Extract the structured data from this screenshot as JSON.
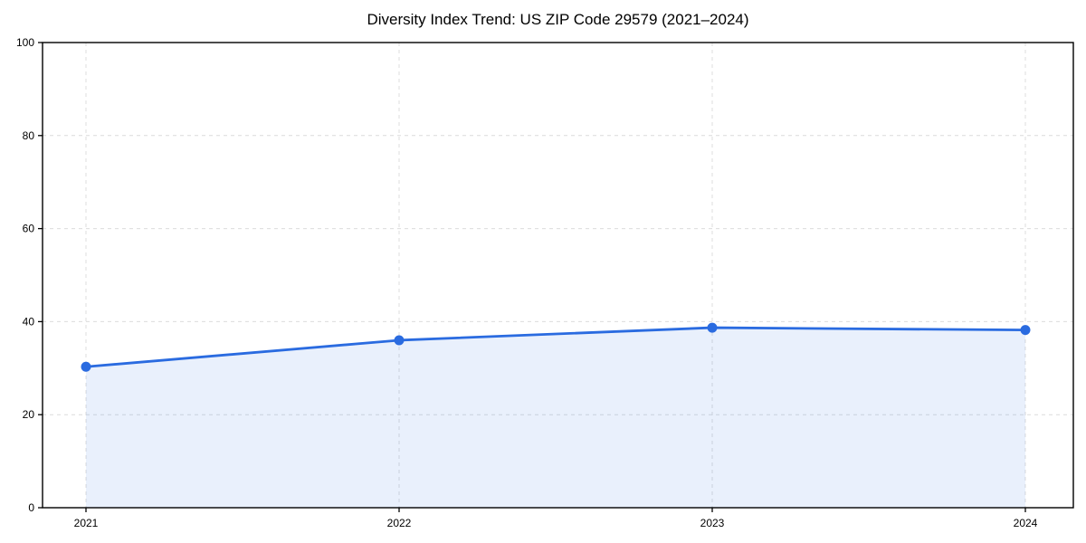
{
  "chart_data": {
    "type": "area",
    "title": "Diversity Index Trend: US ZIP Code 29579 (2021–2024)",
    "categories": [
      "2021",
      "2022",
      "2023",
      "2024"
    ],
    "series": [
      {
        "name": "Diversity Index",
        "values": [
          30.3,
          36.0,
          38.7,
          38.2
        ]
      }
    ],
    "xlabel": "",
    "ylabel": "",
    "ylim": [
      0,
      100
    ],
    "yticks": [
      0,
      20,
      40,
      60,
      80,
      100
    ],
    "grid": true,
    "grid_style": "dashed",
    "legend_position": "none",
    "colors": {
      "line": "#2a6be0",
      "marker": "#2a6be0",
      "fill": "#2a6be0",
      "fill_opacity": 0.1,
      "grid": "#dcdcdc",
      "spine": "#000000",
      "tick_text": "#000000",
      "background": "#ffffff"
    }
  }
}
